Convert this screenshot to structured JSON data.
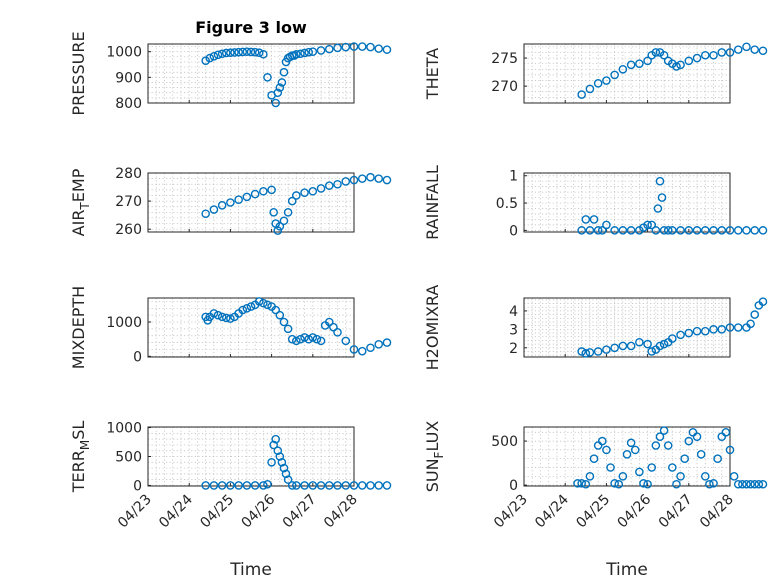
{
  "chart_data": [
    {
      "id": "pressure",
      "type": "scatter",
      "title": "Figure 3 low",
      "ylabel": "PRESSURE",
      "ylabel_sub": "",
      "ylabel_rest": "",
      "ylim": [
        800,
        1030
      ],
      "yticks": [
        800,
        900,
        1000
      ],
      "xticks": [
        "04/23",
        "04/24",
        "04/25",
        "04/26",
        "04/27",
        "04/28"
      ],
      "xlabel": "",
      "x": [
        1.4,
        1.5,
        1.6,
        1.7,
        1.8,
        1.9,
        2.0,
        2.1,
        2.2,
        2.3,
        2.4,
        2.5,
        2.6,
        2.7,
        2.8,
        2.9,
        3.0,
        3.1,
        3.15,
        3.2,
        3.25,
        3.3,
        3.35,
        3.4,
        3.45,
        3.5,
        3.55,
        3.6,
        3.7,
        3.8,
        3.9,
        4.0,
        4.2,
        4.4,
        4.6,
        4.8,
        5.0,
        5.2,
        5.4,
        5.6,
        5.8
      ],
      "y": [
        965,
        975,
        982,
        988,
        992,
        995,
        996,
        997,
        998,
        999,
        1000,
        999,
        998,
        996,
        990,
        900,
        830,
        800,
        840,
        860,
        880,
        920,
        960,
        975,
        980,
        985,
        985,
        990,
        992,
        995,
        998,
        1000,
        1005,
        1010,
        1015,
        1018,
        1020,
        1020,
        1018,
        1012,
        1008
      ]
    },
    {
      "id": "theta",
      "type": "scatter",
      "title": "",
      "ylabel": "THETA",
      "ylabel_sub": "",
      "ylabel_rest": "",
      "ylim": [
        267,
        277.5
      ],
      "yticks": [
        270,
        275
      ],
      "xticks": [
        "04/23",
        "04/24",
        "04/25",
        "04/26",
        "04/27",
        "04/28"
      ],
      "xlabel": "",
      "x": [
        1.4,
        1.6,
        1.8,
        2.0,
        2.2,
        2.4,
        2.6,
        2.8,
        3.0,
        3.1,
        3.2,
        3.3,
        3.4,
        3.5,
        3.6,
        3.7,
        3.8,
        4.0,
        4.2,
        4.4,
        4.6,
        4.8,
        5.0,
        5.2,
        5.4,
        5.6,
        5.8
      ],
      "y": [
        268.5,
        269.5,
        270.5,
        271.0,
        272.0,
        273.0,
        273.8,
        274.0,
        274.5,
        275.5,
        276.0,
        276.0,
        275.5,
        274.5,
        274.0,
        273.5,
        273.8,
        274.5,
        275.0,
        275.5,
        275.5,
        276.0,
        276.0,
        276.5,
        277.0,
        276.5,
        276.3
      ]
    },
    {
      "id": "air_temp",
      "type": "scatter",
      "title": "",
      "ylabel": "AIR",
      "ylabel_sub": "T",
      "ylabel_rest": "EMP",
      "ylim": [
        259,
        280
      ],
      "yticks": [
        260,
        270,
        280
      ],
      "xticks": [
        "04/23",
        "04/24",
        "04/25",
        "04/26",
        "04/27",
        "04/28"
      ],
      "xlabel": "",
      "x": [
        1.4,
        1.6,
        1.8,
        2.0,
        2.2,
        2.4,
        2.6,
        2.8,
        3.0,
        3.05,
        3.1,
        3.15,
        3.2,
        3.3,
        3.4,
        3.5,
        3.6,
        3.8,
        4.0,
        4.2,
        4.4,
        4.6,
        4.8,
        5.0,
        5.2,
        5.4,
        5.6,
        5.8
      ],
      "y": [
        265.5,
        267.0,
        268.5,
        269.5,
        270.5,
        271.5,
        272.5,
        273.5,
        274.0,
        266.0,
        262.0,
        259.5,
        261.0,
        263.0,
        266.0,
        270.0,
        272.0,
        273.0,
        273.5,
        274.5,
        275.5,
        276.0,
        277.0,
        277.5,
        278.0,
        278.5,
        278.0,
        277.5
      ]
    },
    {
      "id": "rainfall",
      "type": "scatter",
      "title": "",
      "ylabel": "RAINFALL",
      "ylabel_sub": "",
      "ylabel_rest": "",
      "ylim": [
        -0.03,
        1.05
      ],
      "yticks": [
        0,
        0.5,
        1
      ],
      "xticks": [
        "04/23",
        "04/24",
        "04/25",
        "04/26",
        "04/27",
        "04/28"
      ],
      "xlabel": "",
      "x": [
        1.4,
        1.5,
        1.6,
        1.7,
        1.8,
        1.9,
        2.0,
        2.2,
        2.4,
        2.6,
        2.8,
        2.9,
        3.0,
        3.1,
        3.2,
        3.25,
        3.3,
        3.35,
        3.4,
        3.5,
        3.6,
        3.8,
        4.0,
        4.2,
        4.4,
        4.6,
        4.8,
        5.0,
        5.2,
        5.4,
        5.6,
        5.8
      ],
      "y": [
        0,
        0.2,
        0,
        0.2,
        0,
        0,
        0.1,
        0,
        0,
        0,
        0,
        0.05,
        0.1,
        0.1,
        0,
        0.4,
        0.9,
        0.6,
        0,
        0,
        0,
        0,
        0,
        0,
        0,
        0,
        0,
        0,
        0,
        0,
        0,
        0
      ]
    },
    {
      "id": "mixdepth",
      "type": "scatter",
      "title": "",
      "ylabel": "MIXDEPTH",
      "ylabel_sub": "",
      "ylabel_rest": "",
      "ylim": [
        -20,
        1700
      ],
      "yticks": [
        0,
        1000
      ],
      "xticks": [
        "04/23",
        "04/24",
        "04/25",
        "04/26",
        "04/27",
        "04/28"
      ],
      "xlabel": "",
      "x": [
        1.4,
        1.45,
        1.5,
        1.6,
        1.7,
        1.8,
        1.9,
        2.0,
        2.1,
        2.2,
        2.3,
        2.4,
        2.5,
        2.6,
        2.7,
        2.8,
        2.9,
        3.0,
        3.1,
        3.2,
        3.3,
        3.4,
        3.5,
        3.6,
        3.7,
        3.8,
        3.9,
        4.0,
        4.1,
        4.2,
        4.3,
        4.4,
        4.5,
        4.6,
        4.8,
        5.0,
        5.2,
        5.4,
        5.6,
        5.8
      ],
      "y": [
        1150,
        1050,
        1150,
        1250,
        1200,
        1150,
        1120,
        1100,
        1150,
        1250,
        1350,
        1400,
        1450,
        1500,
        1600,
        1550,
        1500,
        1450,
        1350,
        1200,
        1000,
        800,
        500,
        450,
        500,
        550,
        500,
        550,
        500,
        450,
        900,
        1000,
        850,
        700,
        450,
        200,
        150,
        250,
        350,
        400
      ]
    },
    {
      "id": "h2omixra",
      "type": "scatter",
      "title": "",
      "ylabel": "H2OMIXRA",
      "ylabel_sub": "",
      "ylabel_rest": "",
      "ylim": [
        1.5,
        4.7
      ],
      "yticks": [
        2,
        3,
        4
      ],
      "xticks": [
        "04/23",
        "04/24",
        "04/25",
        "04/26",
        "04/27",
        "04/28"
      ],
      "xlabel": "",
      "x": [
        1.4,
        1.5,
        1.6,
        1.8,
        2.0,
        2.2,
        2.4,
        2.6,
        2.8,
        3.0,
        3.1,
        3.2,
        3.3,
        3.4,
        3.5,
        3.6,
        3.8,
        4.0,
        4.2,
        4.4,
        4.6,
        4.8,
        5.0,
        5.2,
        5.4,
        5.5,
        5.6,
        5.7,
        5.8
      ],
      "y": [
        1.8,
        1.7,
        1.75,
        1.8,
        1.9,
        2.0,
        2.1,
        2.1,
        2.3,
        2.2,
        1.8,
        1.9,
        2.1,
        2.2,
        2.3,
        2.5,
        2.7,
        2.8,
        2.9,
        2.9,
        3.0,
        3.0,
        3.1,
        3.1,
        3.1,
        3.3,
        3.8,
        4.3,
        4.5
      ]
    },
    {
      "id": "terr_msl",
      "type": "scatter",
      "title": "",
      "ylabel": "TERR",
      "ylabel_sub": "M",
      "ylabel_rest": "SL",
      "ylim": [
        -10,
        1010
      ],
      "yticks": [
        0,
        500,
        1000
      ],
      "xticks": [
        "04/23",
        "04/24",
        "04/25",
        "04/26",
        "04/27",
        "04/28"
      ],
      "xlabel": "Time",
      "x": [
        1.4,
        1.6,
        1.8,
        2.0,
        2.2,
        2.4,
        2.6,
        2.8,
        2.9,
        3.0,
        3.05,
        3.1,
        3.15,
        3.2,
        3.25,
        3.3,
        3.35,
        3.4,
        3.5,
        3.6,
        3.8,
        4.0,
        4.2,
        4.4,
        4.6,
        4.8,
        5.0,
        5.2,
        5.4,
        5.6,
        5.8
      ],
      "y": [
        0,
        0,
        0,
        0,
        0,
        0,
        0,
        0,
        20,
        400,
        700,
        800,
        600,
        500,
        400,
        300,
        200,
        100,
        0,
        0,
        0,
        0,
        0,
        0,
        0,
        0,
        0,
        0,
        0,
        0,
        0
      ]
    },
    {
      "id": "sun_flux",
      "type": "scatter",
      "title": "",
      "ylabel": "SUN",
      "ylabel_sub": "F",
      "ylabel_rest": "LUX",
      "ylim": [
        -10,
        660
      ],
      "yticks": [
        0,
        500
      ],
      "xticks": [
        "04/23",
        "04/24",
        "04/25",
        "04/26",
        "04/27",
        "04/28"
      ],
      "xlabel": "Time",
      "x": [
        1.3,
        1.4,
        1.5,
        1.6,
        1.7,
        1.8,
        1.9,
        2.0,
        2.1,
        2.2,
        2.3,
        2.4,
        2.5,
        2.6,
        2.7,
        2.8,
        2.9,
        3.0,
        3.1,
        3.2,
        3.3,
        3.4,
        3.5,
        3.6,
        3.7,
        3.8,
        3.9,
        4.0,
        4.1,
        4.2,
        4.3,
        4.4,
        4.5,
        4.6,
        4.7,
        4.8,
        4.9,
        5.0,
        5.1,
        5.2,
        5.3,
        5.4,
        5.5,
        5.6,
        5.7,
        5.8
      ],
      "y": [
        20,
        20,
        10,
        100,
        300,
        450,
        500,
        400,
        200,
        20,
        10,
        100,
        350,
        480,
        400,
        150,
        20,
        10,
        200,
        450,
        550,
        620,
        450,
        200,
        10,
        100,
        300,
        500,
        600,
        550,
        350,
        100,
        10,
        20,
        300,
        550,
        600,
        400,
        100,
        10,
        10,
        10,
        10,
        10,
        10,
        10
      ]
    }
  ]
}
